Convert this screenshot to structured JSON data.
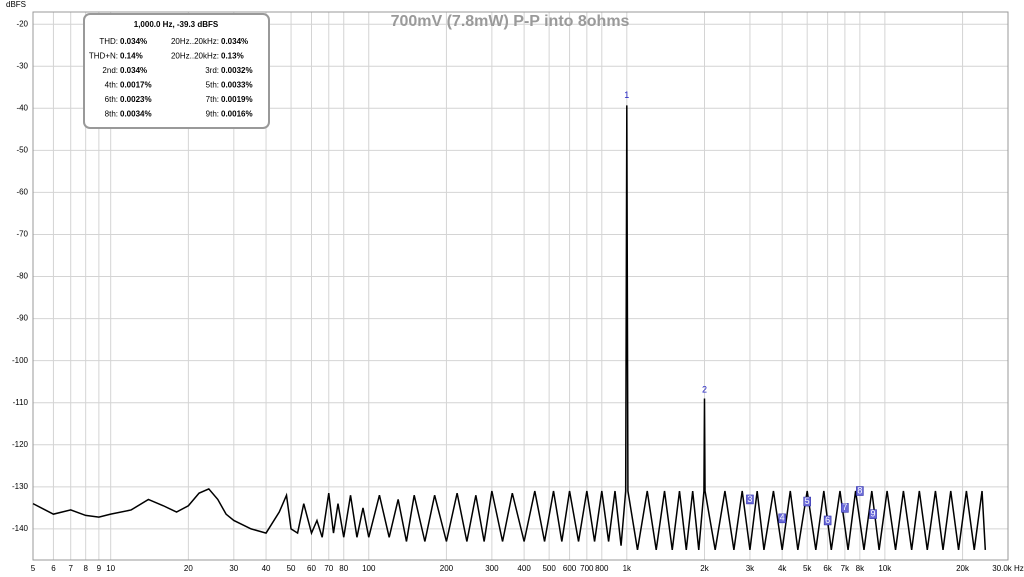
{
  "chart_data": {
    "type": "line",
    "title": "700mV (7.8mW) P-P into 8ohms",
    "y_label": "dBFS",
    "color": "#000000",
    "log_x": true,
    "grid": true,
    "xlim": [
      5,
      30000
    ],
    "ylim": [
      -147.4,
      -17.1
    ],
    "xticks": [
      5,
      6,
      7,
      8,
      9,
      10,
      20,
      30,
      40,
      50,
      60,
      70,
      80,
      100,
      200,
      300,
      400,
      500,
      600,
      700,
      800,
      {
        "value": 1000,
        "label": "1k"
      },
      {
        "value": 2000,
        "label": "2k"
      },
      {
        "value": 3000,
        "label": "3k"
      },
      {
        "value": 4000,
        "label": "4k"
      },
      {
        "value": 5000,
        "label": "5k"
      },
      {
        "value": 6000,
        "label": "6k"
      },
      {
        "value": 7000,
        "label": "7k"
      },
      {
        "value": 8000,
        "label": "8k"
      },
      {
        "value": 10000,
        "label": "10k"
      },
      {
        "value": 20000,
        "label": "20k"
      },
      {
        "value": 30000,
        "label": "30.0k Hz"
      }
    ],
    "yticks": [
      -20,
      -30,
      -40,
      -50,
      -60,
      -70,
      -80,
      -90,
      -100,
      -110,
      -120,
      -130,
      -140
    ],
    "x": [
      5,
      6,
      7,
      8,
      9,
      10,
      12,
      14,
      16,
      18,
      20,
      22,
      24,
      26,
      28,
      30,
      35,
      40,
      45,
      48,
      50,
      53,
      56,
      60,
      63,
      66,
      70,
      73,
      76,
      80,
      85,
      90,
      95,
      100,
      110,
      120,
      130,
      140,
      150,
      165,
      180,
      200,
      220,
      240,
      260,
      280,
      300,
      330,
      360,
      400,
      440,
      480,
      520,
      560,
      600,
      650,
      700,
      750,
      800,
      850,
      900,
      950,
      990,
      1000,
      1010,
      1100,
      1200,
      1300,
      1400,
      1500,
      1600,
      1700,
      1800,
      1900,
      1990,
      2000,
      2010,
      2200,
      2400,
      2600,
      2800,
      3000,
      3200,
      3400,
      3700,
      4000,
      4300,
      4600,
      5000,
      5400,
      5800,
      6200,
      6700,
      7200,
      7700,
      8300,
      8900,
      9500,
      10200,
      11000,
      11800,
      12700,
      13600,
      14600,
      15700,
      16800,
      18000,
      19300,
      20700,
      22200,
      23800,
      24500
    ],
    "values": [
      -134,
      -136.5,
      -135.5,
      -136.8,
      -137.2,
      -136.5,
      -135.5,
      -133,
      -134.5,
      -136,
      -134.5,
      -131.5,
      -130.5,
      -133,
      -136.5,
      -138,
      -140,
      -141,
      -136,
      -132,
      -140,
      -141,
      -134,
      -141,
      -138,
      -142,
      -131.5,
      -141,
      -134,
      -142,
      -132,
      -142,
      -135,
      -142,
      -132,
      -142,
      -133,
      -143,
      -132,
      -143,
      -132,
      -143,
      -131.5,
      -143,
      -132,
      -143,
      -131,
      -143,
      -131.5,
      -143,
      -131,
      -143,
      -131,
      -143,
      -131,
      -143,
      -131,
      -143,
      -131,
      -143,
      -131,
      -144,
      -131,
      -39.3,
      -131,
      -145,
      -131,
      -145,
      -131,
      -145,
      -131,
      -145,
      -131,
      -145,
      -131,
      -109,
      -131,
      -145,
      -131,
      -145,
      -131,
      -145,
      -131,
      -145,
      -131,
      -145,
      -131,
      -145,
      -131,
      -145,
      -131,
      -145,
      -131,
      -145,
      -131,
      -145,
      -131,
      -145,
      -131,
      -145,
      -131,
      -145,
      -131,
      -145,
      -131,
      -145,
      -131,
      -145,
      -131,
      -145,
      -131,
      -145
    ],
    "harmonic_markers": {
      "labels": [
        "1",
        "2",
        "3",
        "4",
        "5",
        "6",
        "7",
        "8",
        "9"
      ],
      "x": [
        1000,
        2000,
        3000,
        4000,
        5000,
        6000,
        7000,
        8000,
        9000
      ],
      "y": [
        -37,
        -107,
        -133,
        -137.5,
        -133.5,
        -138,
        -135,
        -131,
        -136.5
      ]
    },
    "info_box": {
      "title": "1,000.0 Hz, -39.3 dBFS",
      "rows": [
        [
          "THD:",
          "0.034%",
          "20Hz..20kHz:",
          "0.034%"
        ],
        [
          "THD+N:",
          "0.14%",
          "20Hz..20kHz:",
          "0.13%"
        ],
        [
          "2nd:",
          "0.034%",
          "3rd:",
          "0.0032%"
        ],
        [
          "4th:",
          "0.0017%",
          "5th:",
          "0.0033%"
        ],
        [
          "6th:",
          "0.0023%",
          "7th:",
          "0.0019%"
        ],
        [
          "8th:",
          "0.0034%",
          "9th:",
          "0.0016%"
        ]
      ]
    }
  }
}
